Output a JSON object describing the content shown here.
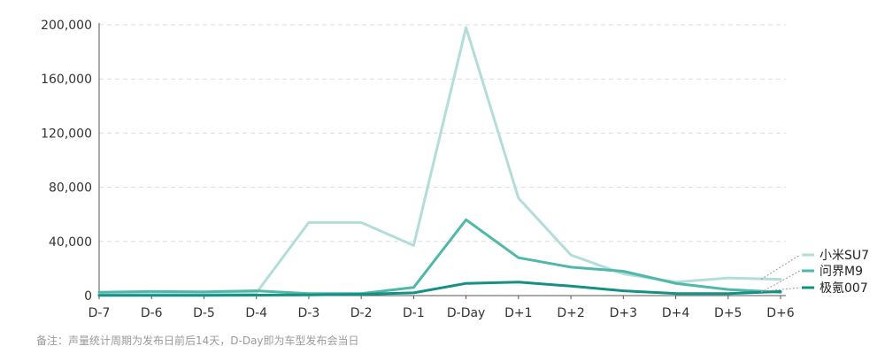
{
  "chart_data": {
    "type": "line",
    "title": "",
    "xlabel": "",
    "ylabel": "",
    "categories": [
      "D-7",
      "D-6",
      "D-5",
      "D-4",
      "D-3",
      "D-2",
      "D-1",
      "D-Day",
      "D+1",
      "D+2",
      "D+3",
      "D+4",
      "D+5",
      "D+6"
    ],
    "ylim": [
      0,
      200000
    ],
    "yticks": [
      0,
      40000,
      80000,
      120000,
      160000,
      200000
    ],
    "ytick_labels": [
      "0",
      "40,000",
      "80,000",
      "120,000",
      "160,000",
      "200,000"
    ],
    "grid": true,
    "legend_position": "right, labels at line ends",
    "series": [
      {
        "name": "小米SU7",
        "color": "#b3ddd8",
        "values": [
          1500,
          1000,
          1500,
          2000,
          54000,
          54000,
          37000,
          198000,
          72000,
          30000,
          16000,
          10000,
          13000,
          12000
        ]
      },
      {
        "name": "问界M9",
        "color": "#4fb8a8",
        "values": [
          2500,
          3000,
          2800,
          3500,
          1500,
          1500,
          6000,
          56000,
          28000,
          21000,
          18000,
          9000,
          4500,
          2500
        ]
      },
      {
        "name": "极氪007",
        "color": "#149084",
        "values": [
          200,
          200,
          200,
          300,
          500,
          1000,
          2000,
          9000,
          10000,
          7000,
          3500,
          1500,
          1500,
          3000
        ]
      }
    ]
  },
  "note": "备注：声量统计周期为发布日前后14天，D-Day即为车型发布会当日"
}
